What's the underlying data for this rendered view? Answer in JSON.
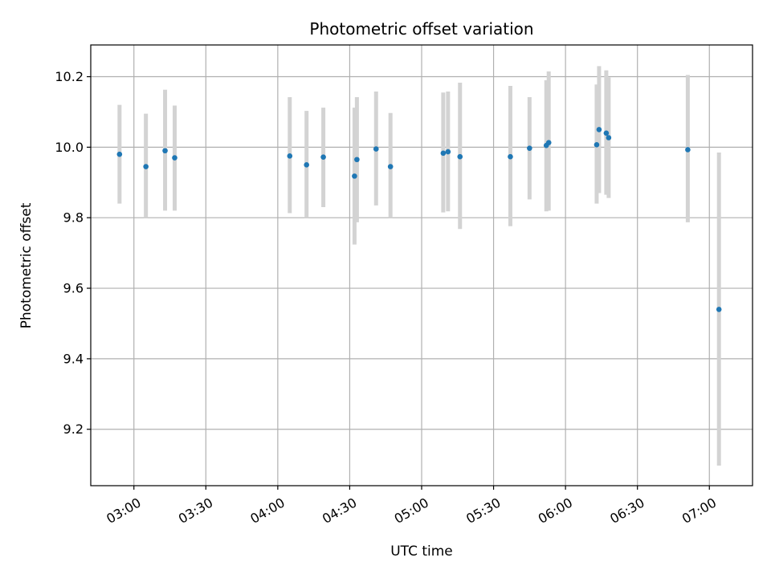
{
  "chart_data": {
    "type": "scatter",
    "title": "Photometric offset variation",
    "xlabel": "UTC time",
    "ylabel": "Photometric offset",
    "xlim": [
      "02:42",
      "07:18"
    ],
    "ylim": [
      9.04,
      10.29
    ],
    "x_ticks": [
      "03:00",
      "03:30",
      "04:00",
      "04:30",
      "05:00",
      "05:30",
      "06:00",
      "06:30",
      "07:00"
    ],
    "y_ticks": [
      9.2,
      9.4,
      9.6,
      9.8,
      10.0,
      10.2
    ],
    "grid": true,
    "colors": {
      "point": "#1f77b4",
      "errorbar": "#d3d3d3",
      "grid": "#b0b0b0"
    },
    "series": [
      {
        "points": [
          {
            "x": "02:54",
            "y": 9.98,
            "low": 9.84,
            "high": 10.12
          },
          {
            "x": "03:05",
            "y": 9.945,
            "low": 9.8,
            "high": 10.095
          },
          {
            "x": "03:13",
            "y": 9.99,
            "low": 9.82,
            "high": 10.163
          },
          {
            "x": "03:17",
            "y": 9.97,
            "low": 9.82,
            "high": 10.118
          },
          {
            "x": "04:05",
            "y": 9.975,
            "low": 9.813,
            "high": 10.142
          },
          {
            "x": "04:12",
            "y": 9.95,
            "low": 9.8,
            "high": 10.103
          },
          {
            "x": "04:19",
            "y": 9.972,
            "low": 9.83,
            "high": 10.112
          },
          {
            "x": "04:32",
            "y": 9.918,
            "low": 9.724,
            "high": 10.112
          },
          {
            "x": "04:33",
            "y": 9.965,
            "low": 9.787,
            "high": 10.142
          },
          {
            "x": "04:41",
            "y": 9.995,
            "low": 9.835,
            "high": 10.158
          },
          {
            "x": "04:47",
            "y": 9.945,
            "low": 9.8,
            "high": 10.097
          },
          {
            "x": "05:09",
            "y": 9.983,
            "low": 9.815,
            "high": 10.155
          },
          {
            "x": "05:11",
            "y": 9.987,
            "low": 9.818,
            "high": 10.158
          },
          {
            "x": "05:16",
            "y": 9.973,
            "low": 9.768,
            "high": 10.183
          },
          {
            "x": "05:37",
            "y": 9.973,
            "low": 9.776,
            "high": 10.174
          },
          {
            "x": "05:45",
            "y": 9.997,
            "low": 9.852,
            "high": 10.142
          },
          {
            "x": "05:52",
            "y": 10.005,
            "low": 9.818,
            "high": 10.19
          },
          {
            "x": "05:53",
            "y": 10.013,
            "low": 9.82,
            "high": 10.215
          },
          {
            "x": "06:13",
            "y": 10.007,
            "low": 9.84,
            "high": 10.178
          },
          {
            "x": "06:14",
            "y": 10.05,
            "low": 9.87,
            "high": 10.23
          },
          {
            "x": "06:17",
            "y": 10.04,
            "low": 9.865,
            "high": 10.218
          },
          {
            "x": "06:18",
            "y": 10.027,
            "low": 9.856,
            "high": 10.198
          },
          {
            "x": "06:51",
            "y": 9.993,
            "low": 9.787,
            "high": 10.205
          },
          {
            "x": "07:04",
            "y": 9.54,
            "low": 9.097,
            "high": 9.985
          }
        ]
      }
    ]
  }
}
